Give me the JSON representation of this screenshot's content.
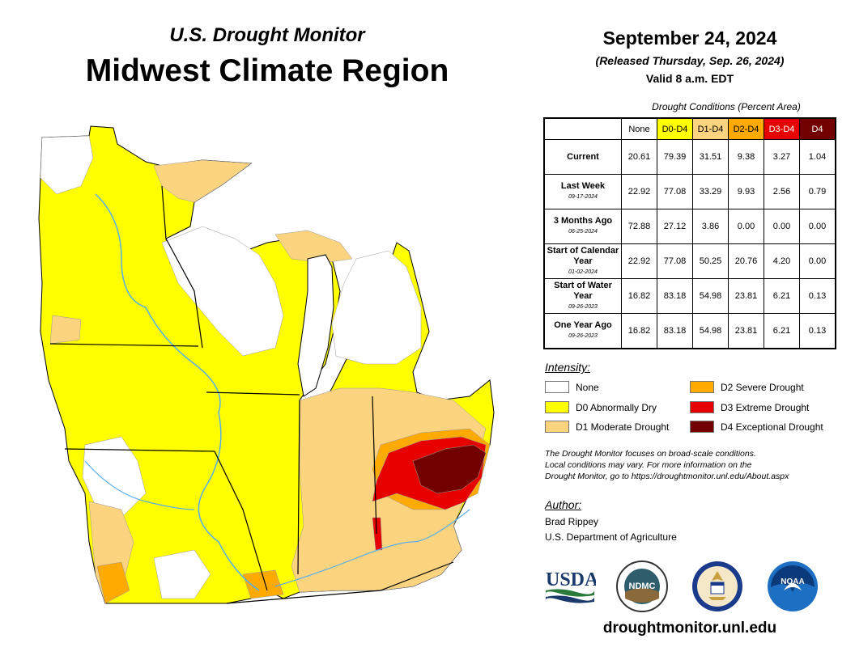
{
  "header": {
    "monitor_title": "U.S. Drought Monitor",
    "region_title": "Midwest Climate Region",
    "date": "September 24, 2024",
    "released": "(Released Thursday, Sep. 26, 2024)",
    "valid": "Valid 8 a.m. EDT"
  },
  "table": {
    "caption": "Drought Conditions (Percent Area)",
    "columns": [
      {
        "label": "None",
        "color": "#ffffff"
      },
      {
        "label": "D0-D4",
        "color": "#ffff00"
      },
      {
        "label": "D1-D4",
        "color": "#fcd37f"
      },
      {
        "label": "D2-D4",
        "color": "#ffaa00"
      },
      {
        "label": "D3-D4",
        "color": "#e60000"
      },
      {
        "label": "D4",
        "color": "#730000"
      }
    ],
    "rows": [
      {
        "label": "Current",
        "date": "",
        "values": [
          "20.61",
          "79.39",
          "31.51",
          "9.38",
          "3.27",
          "1.04"
        ]
      },
      {
        "label": "Last Week",
        "date": "09-17-2024",
        "values": [
          "22.92",
          "77.08",
          "33.29",
          "9.93",
          "2.56",
          "0.79"
        ]
      },
      {
        "label": "3 Months Ago",
        "date": "06-25-2024",
        "values": [
          "72.88",
          "27.12",
          "3.86",
          "0.00",
          "0.00",
          "0.00"
        ]
      },
      {
        "label": "Start of Calendar Year",
        "date": "01-02-2024",
        "values": [
          "22.92",
          "77.08",
          "50.25",
          "20.76",
          "4.20",
          "0.00"
        ]
      },
      {
        "label": "Start of Water Year",
        "date": "09-26-2023",
        "values": [
          "16.82",
          "83.18",
          "54.98",
          "23.81",
          "6.21",
          "0.13"
        ]
      },
      {
        "label": "One Year Ago",
        "date": "09-26-2023",
        "values": [
          "16.82",
          "83.18",
          "54.98",
          "23.81",
          "6.21",
          "0.13"
        ]
      }
    ]
  },
  "legend": {
    "title": "Intensity:",
    "items": [
      {
        "label": "None",
        "color": "#ffffff"
      },
      {
        "label": "D0 Abnormally Dry",
        "color": "#ffff00"
      },
      {
        "label": "D1 Moderate Drought",
        "color": "#fcd37f"
      },
      {
        "label": "D2 Severe Drought",
        "color": "#ffaa00"
      },
      {
        "label": "D3 Extreme Drought",
        "color": "#e60000"
      },
      {
        "label": "D4 Exceptional Drought",
        "color": "#730000"
      }
    ]
  },
  "note": {
    "line1": "The Drought Monitor focuses on broad-scale conditions.",
    "line2": "Local conditions may vary. For more information on the",
    "line3": "Drought Monitor, go to https://droughtmonitor.unl.edu/About.aspx"
  },
  "author": {
    "title": "Author:",
    "name": "Brad Rippey",
    "org": "U.S. Department of Agriculture"
  },
  "logos": {
    "usda": "USDA",
    "ndmc": "NDMC",
    "noaa": "NOAA"
  },
  "footer": {
    "url": "droughtmonitor.unl.edu"
  },
  "map": {
    "water_color": "#5aaee8",
    "border_color": "#000000"
  }
}
